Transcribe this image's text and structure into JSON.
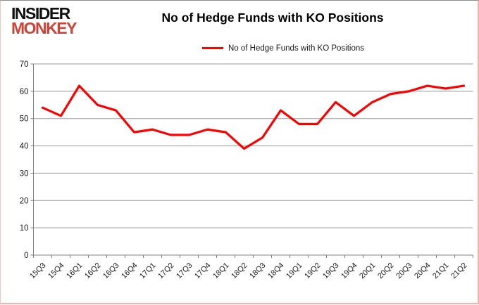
{
  "header": {
    "logo_line1": "INSIDER",
    "logo_line2": "MONKEY",
    "title": "No of Hedge Funds with KO Positions"
  },
  "legend": {
    "label": "No of Hedge Funds with KO Positions",
    "color": "#ff0000"
  },
  "colors": {
    "line": "#ff0000",
    "grid": "#9a9a9a",
    "axis": "#808080",
    "tick_label": "#1a1a1a",
    "logo_red": "#cb4437"
  },
  "chart_data": {
    "type": "line",
    "title": "No of Hedge Funds with KO Positions",
    "categories": [
      "15Q3",
      "15Q4",
      "16Q1",
      "16Q2",
      "16Q3",
      "16Q4",
      "17Q1",
      "17Q2",
      "17Q3",
      "17Q4",
      "18Q1",
      "18Q2",
      "18Q3",
      "18Q4",
      "19Q1",
      "19Q2",
      "19Q3",
      "19Q4",
      "20Q1",
      "20Q2",
      "20Q3",
      "20Q4",
      "21Q1",
      "21Q2"
    ],
    "series": [
      {
        "name": "No of Hedge Funds with KO Positions",
        "color": "#ff0000",
        "values": [
          54,
          51,
          62,
          55,
          53,
          45,
          46,
          44,
          44,
          46,
          45,
          39,
          43,
          53,
          48,
          48,
          56,
          51,
          56,
          59,
          60,
          62,
          61,
          62
        ]
      }
    ],
    "xlabel": "",
    "ylabel": "",
    "ylim": [
      0,
      70
    ],
    "ytick_step": 10,
    "grid": true,
    "legend_position": "top"
  }
}
